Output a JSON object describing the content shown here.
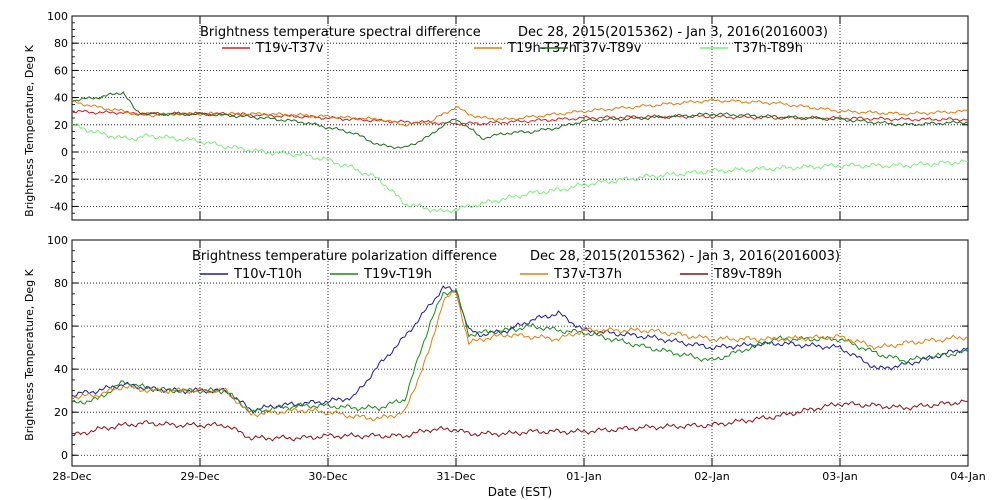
{
  "x_axis": {
    "label": "Date (EST)",
    "ticks": [
      "28-Dec",
      "29-Dec",
      "30-Dec",
      "31-Dec",
      "01-Jan",
      "02-Jan",
      "03-Jan",
      "04-Jan"
    ]
  },
  "chart_data": [
    {
      "type": "line",
      "title": "Brightness temperature spectral difference",
      "date_range": "Dec 28, 2015(2015362) - Jan  3, 2016(2016003)",
      "ylabel": "Brightness Temperature, Deg K",
      "ylim": [
        -50,
        100
      ],
      "yticks": [
        -40,
        -20,
        0,
        20,
        40,
        60,
        80,
        100
      ],
      "x": [
        0,
        0.2,
        0.4,
        0.5,
        0.6,
        0.8,
        1.0,
        1.2,
        1.5,
        1.8,
        2.0,
        2.2,
        2.4,
        2.6,
        2.8,
        2.9,
        3.0,
        3.1,
        3.2,
        3.4,
        3.6,
        3.8,
        4.0,
        4.5,
        5.0,
        5.5,
        6.0,
        6.5,
        7.0
      ],
      "series": [
        {
          "name": "T19v-T37v",
          "color": "#d42020",
          "values": [
            30,
            29,
            29,
            28,
            28,
            28,
            28,
            28,
            27,
            26,
            25,
            24,
            23,
            22,
            22,
            21,
            21,
            21,
            21,
            22,
            23,
            24,
            25,
            26,
            26,
            25,
            25,
            24,
            24
          ]
        },
        {
          "name": "T19h-T37h",
          "color": "#e07a10",
          "values": [
            37,
            33,
            30,
            28,
            27,
            28,
            28,
            28,
            28,
            27,
            26,
            25,
            24,
            20,
            22,
            28,
            33,
            28,
            25,
            24,
            26,
            28,
            30,
            34,
            38,
            36,
            30,
            28,
            30
          ]
        },
        {
          "name": "T37v-T89v",
          "color": "#1a6e1a",
          "values": [
            38,
            40,
            44,
            30,
            28,
            28,
            28,
            27,
            25,
            22,
            18,
            14,
            5,
            3,
            12,
            20,
            24,
            18,
            10,
            14,
            15,
            18,
            23,
            25,
            28,
            26,
            24,
            20,
            22
          ]
        },
        {
          "name": "T37h-T89h",
          "color": "#7aee7a",
          "values": [
            20,
            14,
            10,
            10,
            12,
            10,
            8,
            4,
            0,
            -2,
            -6,
            -12,
            -20,
            -38,
            -42,
            -44,
            -42,
            -40,
            -38,
            -34,
            -30,
            -28,
            -24,
            -18,
            -14,
            -12,
            -10,
            -10,
            -7
          ]
        }
      ]
    },
    {
      "type": "line",
      "title": "Brightness temperature polarization difference",
      "date_range": "Dec 28, 2015(2015362) - Jan  3, 2016(2016003)",
      "ylabel": "Brightness Temperature, Deg K",
      "ylim": [
        -5,
        100
      ],
      "yticks": [
        0,
        20,
        40,
        60,
        80,
        100
      ],
      "x": [
        0,
        0.2,
        0.4,
        0.6,
        0.8,
        1.0,
        1.2,
        1.4,
        1.6,
        1.8,
        2.0,
        2.2,
        2.4,
        2.6,
        2.8,
        2.9,
        3.0,
        3.1,
        3.2,
        3.4,
        3.6,
        3.8,
        4.0,
        4.5,
        5.0,
        5.5,
        6.0,
        6.3,
        6.5,
        7.0
      ],
      "series": [
        {
          "name": "T10v-T10h",
          "color": "#1a1aa0",
          "values": [
            28,
            30,
            33,
            31,
            30,
            30,
            30,
            21,
            23,
            24,
            25,
            27,
            42,
            55,
            70,
            78,
            76,
            58,
            56,
            58,
            63,
            66,
            58,
            55,
            50,
            52,
            50,
            40,
            42,
            50
          ]
        },
        {
          "name": "T19v-T19h",
          "color": "#1a8a1a",
          "values": [
            24,
            26,
            34,
            31,
            30,
            30,
            30,
            20,
            22,
            23,
            23,
            22,
            22,
            26,
            62,
            75,
            77,
            56,
            57,
            58,
            60,
            58,
            57,
            50,
            44,
            54,
            54,
            47,
            44,
            48
          ]
        },
        {
          "name": "T37v-T37h",
          "color": "#e08010",
          "values": [
            27,
            28,
            32,
            30,
            30,
            30,
            30,
            19,
            20,
            21,
            20,
            18,
            17,
            20,
            50,
            72,
            76,
            52,
            54,
            56,
            55,
            54,
            58,
            58,
            54,
            54,
            55,
            50,
            52,
            55
          ]
        },
        {
          "name": "T89v-T89h",
          "color": "#8a1010",
          "values": [
            9,
            12,
            14,
            15,
            14,
            14,
            14,
            8,
            8,
            8,
            9,
            9,
            9,
            9,
            12,
            12,
            12,
            10,
            10,
            10,
            11,
            11,
            11,
            13,
            14,
            18,
            24,
            23,
            22,
            25
          ]
        }
      ]
    }
  ]
}
